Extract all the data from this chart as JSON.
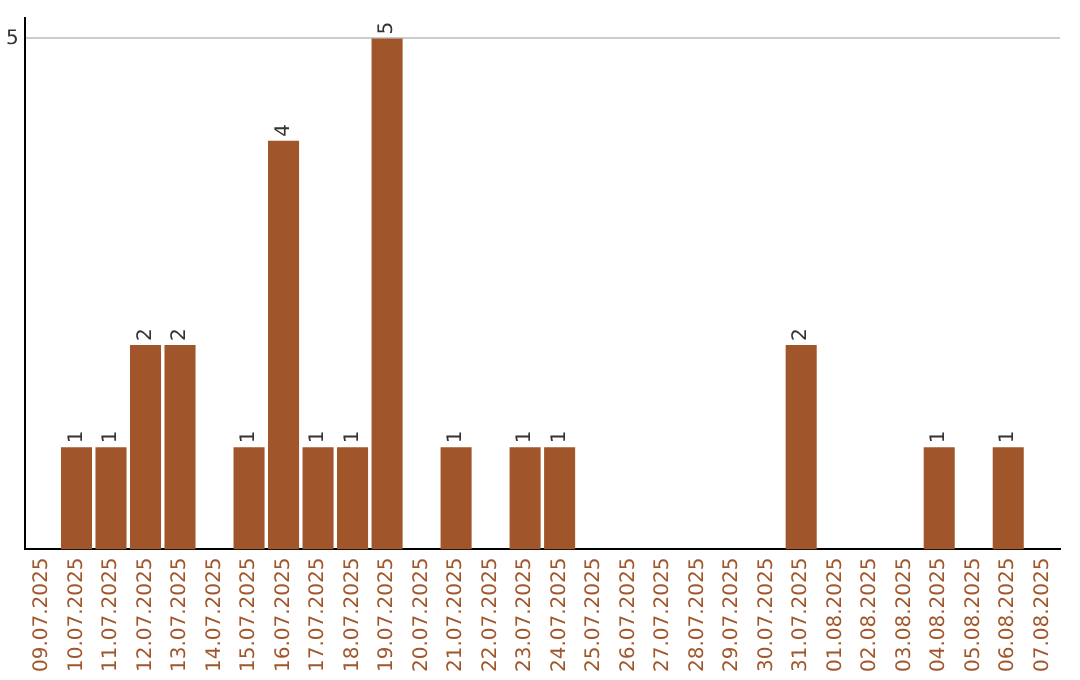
{
  "chart_data": {
    "type": "bar",
    "categories": [
      "09.07.2025",
      "10.07.2025",
      "11.07.2025",
      "12.07.2025",
      "13.07.2025",
      "14.07.2025",
      "15.07.2025",
      "16.07.2025",
      "17.07.2025",
      "18.07.2025",
      "19.07.2025",
      "20.07.2025",
      "21.07.2025",
      "22.07.2025",
      "23.07.2025",
      "24.07.2025",
      "25.07.2025",
      "26.07.2025",
      "27.07.2025",
      "28.07.2025",
      "29.07.2025",
      "30.07.2025",
      "31.07.2025",
      "01.08.2025",
      "02.08.2025",
      "03.08.2025",
      "04.08.2025",
      "05.08.2025",
      "06.08.2025",
      "07.08.2025"
    ],
    "values": [
      0,
      1,
      1,
      2,
      2,
      0,
      1,
      4,
      1,
      1,
      5,
      0,
      1,
      0,
      1,
      1,
      0,
      0,
      0,
      0,
      0,
      0,
      2,
      0,
      0,
      0,
      1,
      0,
      1,
      0
    ],
    "value_labels": [
      null,
      "1",
      "1",
      "2",
      "2",
      null,
      "1",
      "4",
      "1",
      "1",
      "5",
      null,
      "1",
      null,
      "1",
      "1",
      null,
      null,
      null,
      null,
      null,
      null,
      "2",
      null,
      null,
      null,
      "1",
      null,
      "1",
      null
    ],
    "color": "#a0562a",
    "ylim": [
      0,
      5.2
    ],
    "yticks": [
      5
    ],
    "grid": "y",
    "legend": false
  }
}
